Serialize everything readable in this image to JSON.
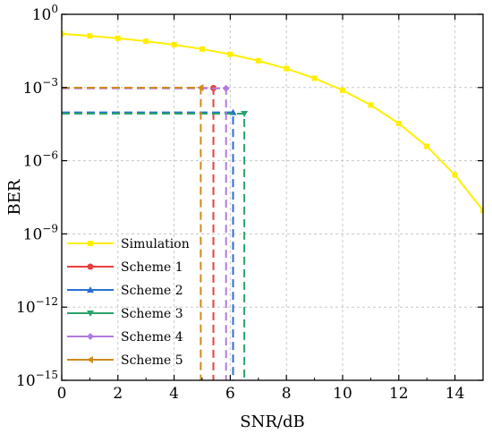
{
  "chart_data": {
    "type": "line",
    "xlabel": "SNR/dB",
    "ylabel": "BER",
    "xlim": [
      0,
      15
    ],
    "ylim_log10": [
      -15,
      0
    ],
    "y_scale": "log",
    "grid": true,
    "legend_position": "bottom-left",
    "x_ticks": [
      0,
      2,
      4,
      6,
      8,
      10,
      12,
      14
    ],
    "x_tick_labels": [
      "0",
      "2",
      "4",
      "6",
      "8",
      "10",
      "12",
      "14"
    ],
    "y_ticks": [
      {
        "mant": "10",
        "exp": "0",
        "log10": 0
      },
      {
        "mant": "10",
        "exp": "−3",
        "log10": -3
      },
      {
        "mant": "10",
        "exp": "−6",
        "log10": -6
      },
      {
        "mant": "10",
        "exp": "−9",
        "log10": -9
      },
      {
        "mant": "10",
        "exp": "−12",
        "log10": -12
      },
      {
        "mant": "10",
        "exp": "−15",
        "log10": -15
      }
    ],
    "series": [
      {
        "name": "Simulation",
        "color": "#ffee00",
        "marker": "square",
        "dash": "solid",
        "x": [
          0,
          1,
          2,
          3,
          4,
          5,
          6,
          7,
          8,
          9,
          10,
          11,
          12,
          13,
          14,
          15
        ],
        "y": [
          0.159,
          0.13,
          0.104,
          0.0786,
          0.0565,
          0.0377,
          0.023,
          0.0125,
          0.00595,
          0.00239,
          0.000773,
          0.000191,
          3.36e-05,
          3.87e-06,
          2.61e-07,
          9e-09
        ]
      },
      {
        "name": "Scheme 1",
        "color": "#e8403c",
        "marker": "circle",
        "dash": "dashed",
        "x": [
          0,
          5.4,
          5.4
        ],
        "y": [
          0.00095,
          0.00095,
          1e-15
        ]
      },
      {
        "name": "Scheme 2",
        "color": "#2a6fd6",
        "marker": "triangle-up",
        "dash": "dashed",
        "x": [
          0,
          6.1,
          6.1
        ],
        "y": [
          9.5e-05,
          9.5e-05,
          1e-15
        ]
      },
      {
        "name": "Scheme 3",
        "color": "#2aa36b",
        "marker": "triangle-down",
        "dash": "dashed",
        "x": [
          0,
          6.5,
          6.5
        ],
        "y": [
          8.5e-05,
          8.5e-05,
          1e-15
        ]
      },
      {
        "name": "Scheme 4",
        "color": "#b07ae0",
        "marker": "diamond",
        "dash": "dashed",
        "x": [
          0,
          5.85,
          5.85
        ],
        "y": [
          0.00092,
          0.00092,
          1e-15
        ]
      },
      {
        "name": "Scheme 5",
        "color": "#d08a1c",
        "marker": "triangle-left",
        "dash": "dashed",
        "x": [
          0,
          4.95,
          4.95
        ],
        "y": [
          0.00098,
          0.00098,
          1e-15
        ]
      }
    ]
  }
}
